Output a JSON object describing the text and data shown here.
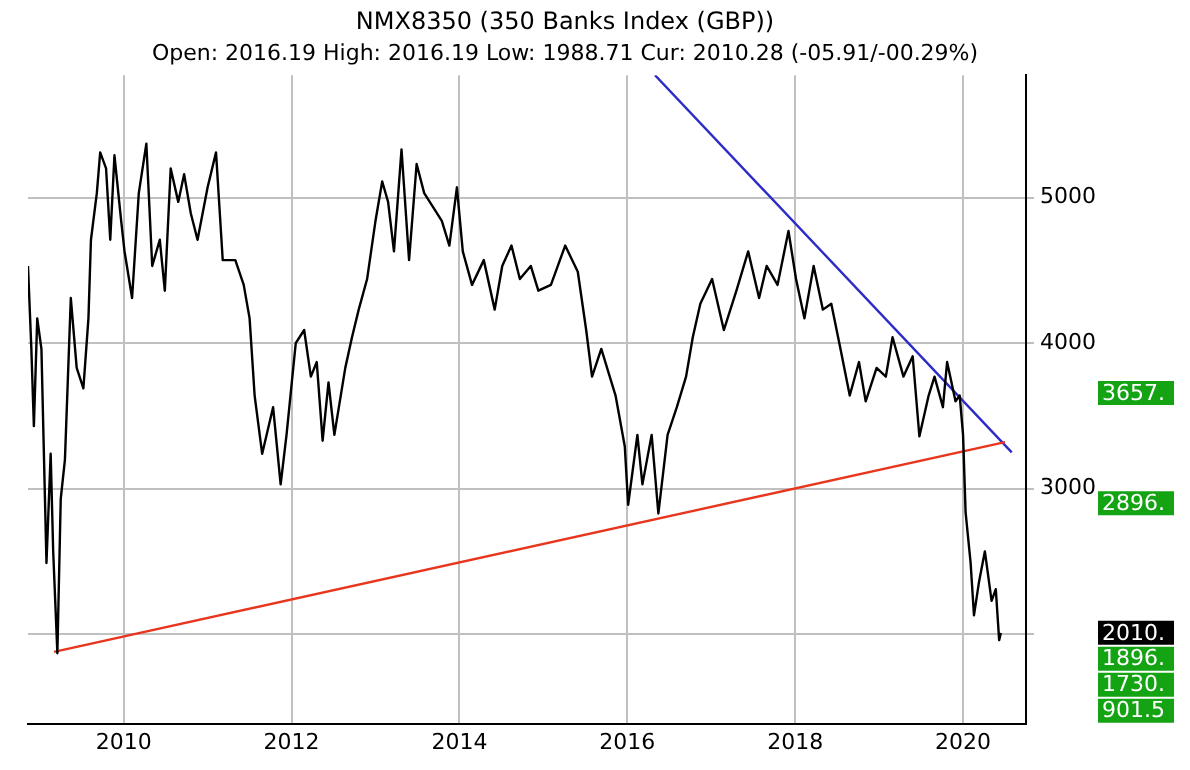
{
  "chart_data": {
    "type": "line",
    "title": "NMX8350 (350 Banks Index (GBP))",
    "subtitle": "Open: 2016.19 High: 2016.19 Low: 1988.71 Cur: 2010.28 (-05.91/-00.29%)",
    "xlim": [
      2008.86,
      2020.75
    ],
    "xticks": [
      2010,
      2012,
      2014,
      2016,
      2018,
      2020
    ],
    "ylim": [
      1387,
      5840
    ],
    "yticks": [
      {
        "value": 2000,
        "label": null
      },
      3000,
      4000,
      5000
    ],
    "grid": true,
    "legend": false,
    "marker": "none",
    "line_style": "solid",
    "series": [
      {
        "color": "#000000",
        "x": [
          2008.86,
          2008.9,
          2008.93,
          2008.97,
          2009.02,
          2009.08,
          2009.13,
          2009.16,
          2009.21,
          2009.25,
          2009.3,
          2009.37,
          2009.44,
          2009.52,
          2009.58,
          2009.61,
          2009.68,
          2009.72,
          2009.79,
          2009.84,
          2009.89,
          2009.97,
          2010.01,
          2010.1,
          2010.18,
          2010.27,
          2010.34,
          2010.43,
          2010.49,
          2010.56,
          2010.65,
          2010.72,
          2010.8,
          2010.88,
          2011.0,
          2011.1,
          2011.18,
          2011.33,
          2011.43,
          2011.5,
          2011.56,
          2011.65,
          2011.78,
          2011.87,
          2011.94,
          2012.05,
          2012.15,
          2012.23,
          2012.3,
          2012.37,
          2012.44,
          2012.51,
          2012.64,
          2012.72,
          2012.8,
          2012.9,
          2013.0,
          2013.08,
          2013.15,
          2013.22,
          2013.31,
          2013.4,
          2013.49,
          2013.58,
          2013.69,
          2013.79,
          2013.88,
          2013.97,
          2014.04,
          2014.15,
          2014.29,
          2014.42,
          2014.51,
          2014.62,
          2014.72,
          2014.85,
          2014.94,
          2015.09,
          2015.26,
          2015.41,
          2015.51,
          2015.58,
          2015.69,
          2015.86,
          2015.97,
          2016.01,
          2016.12,
          2016.18,
          2016.29,
          2016.37,
          2016.48,
          2016.59,
          2016.7,
          2016.78,
          2016.87,
          2017.01,
          2017.15,
          2017.3,
          2017.44,
          2017.57,
          2017.66,
          2017.79,
          2017.92,
          2018.01,
          2018.11,
          2018.22,
          2018.33,
          2018.43,
          2018.54,
          2018.65,
          2018.76,
          2018.84,
          2018.97,
          2019.08,
          2019.16,
          2019.29,
          2019.4,
          2019.48,
          2019.59,
          2019.66,
          2019.76,
          2019.81,
          2019.91,
          2019.96,
          2020.0,
          2020.03,
          2020.09,
          2020.13,
          2020.19,
          2020.26,
          2020.34,
          2020.39,
          2020.43,
          2020.45
        ],
        "values": [
          4530,
          3960,
          3430,
          4170,
          3960,
          2490,
          3240,
          2570,
          1870,
          2930,
          3200,
          4310,
          3830,
          3690,
          4170,
          4710,
          5030,
          5310,
          5200,
          4710,
          5290,
          4840,
          4630,
          4310,
          5030,
          5370,
          4530,
          4710,
          4360,
          5200,
          4970,
          5160,
          4890,
          4710,
          5070,
          5310,
          4570,
          4570,
          4400,
          4170,
          3640,
          3240,
          3560,
          3030,
          3370,
          4000,
          4090,
          3770,
          3870,
          3330,
          3730,
          3370,
          3830,
          4040,
          4230,
          4440,
          4840,
          5110,
          4970,
          4630,
          5330,
          4570,
          5230,
          5030,
          4930,
          4840,
          4670,
          5070,
          4630,
          4400,
          4570,
          4230,
          4530,
          4670,
          4440,
          4530,
          4360,
          4400,
          4670,
          4490,
          4090,
          3770,
          3960,
          3640,
          3290,
          2890,
          3370,
          3030,
          3370,
          2830,
          3370,
          3560,
          3770,
          4040,
          4270,
          4440,
          4090,
          4360,
          4630,
          4310,
          4530,
          4400,
          4770,
          4440,
          4170,
          4530,
          4230,
          4270,
          3960,
          3640,
          3870,
          3600,
          3830,
          3770,
          4040,
          3770,
          3910,
          3360,
          3640,
          3770,
          3560,
          3870,
          3600,
          3640,
          3370,
          2840,
          2490,
          2130,
          2360,
          2570,
          2230,
          2310,
          1960,
          2010
        ]
      },
      {
        "color": "#e8361e",
        "x": [
          2009.17,
          2020.5
        ],
        "values": [
          1880,
          3320
        ]
      },
      {
        "color": "#2b2bc8",
        "x": [
          2016.33,
          2020.58
        ],
        "values": [
          5840,
          3250
        ]
      }
    ],
    "annotations": [
      "3657.",
      "2896.",
      "2010.",
      "1896.",
      "1730.",
      "901.5"
    ]
  }
}
